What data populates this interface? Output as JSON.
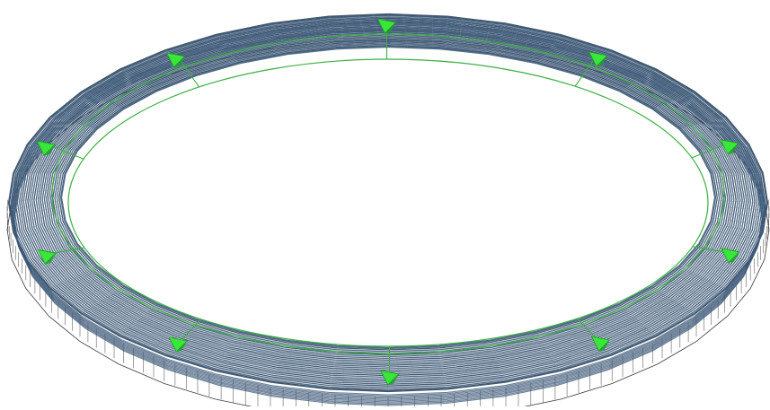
{
  "colors": {
    "background": "#ffffff",
    "ring_steel": "#3d5a78",
    "ring_steel_dark": "#2c4661",
    "ring_hatch": "#6f8aa6",
    "base_outline": "#3a3a3a",
    "guide_line": "#3cb043",
    "support_marker": "#39e639",
    "support_marker_dark": "#1f9e2a"
  },
  "model": {
    "view": "3d-wireframe-ring-structure",
    "support_count": 10,
    "segment_count": 40,
    "radial_guide_count": 10
  }
}
